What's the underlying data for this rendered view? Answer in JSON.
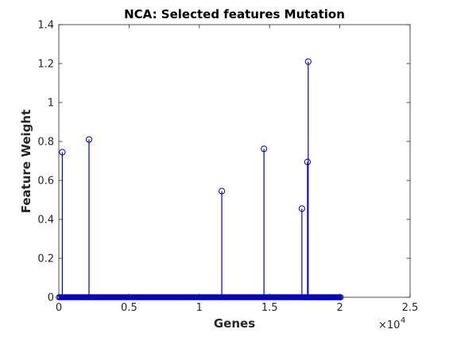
{
  "chart_data": {
    "type": "stem",
    "title": "NCA: Selected features Mutation",
    "xlabel": "Genes",
    "ylabel": "Feature Weight",
    "x_multiplier_label": "×10",
    "x_multiplier_exponent": "4",
    "xlim": [
      0,
      25000
    ],
    "ylim": [
      0,
      1.4
    ],
    "x_ticks": [
      0,
      5000,
      10000,
      15000,
      20000,
      25000
    ],
    "x_tick_labels": [
      "0",
      "0.5",
      "1",
      "1.5",
      "2",
      "2.5"
    ],
    "y_ticks": [
      0,
      0.2,
      0.4,
      0.6,
      0.8,
      1.0,
      1.2,
      1.4
    ],
    "y_tick_labels": [
      "0",
      "0.2",
      "0.4",
      "0.6",
      "0.8",
      "1",
      "1.2",
      "1.4"
    ],
    "series_color": "#0000cc",
    "feature_count": 20131,
    "nonzero_points": [
      {
        "x": 250,
        "y": 0.745
      },
      {
        "x": 2150,
        "y": 0.81
      },
      {
        "x": 11600,
        "y": 0.545
      },
      {
        "x": 14600,
        "y": 0.762
      },
      {
        "x": 17300,
        "y": 0.455
      },
      {
        "x": 17700,
        "y": 0.695
      },
      {
        "x": 17750,
        "y": 1.21
      }
    ]
  }
}
